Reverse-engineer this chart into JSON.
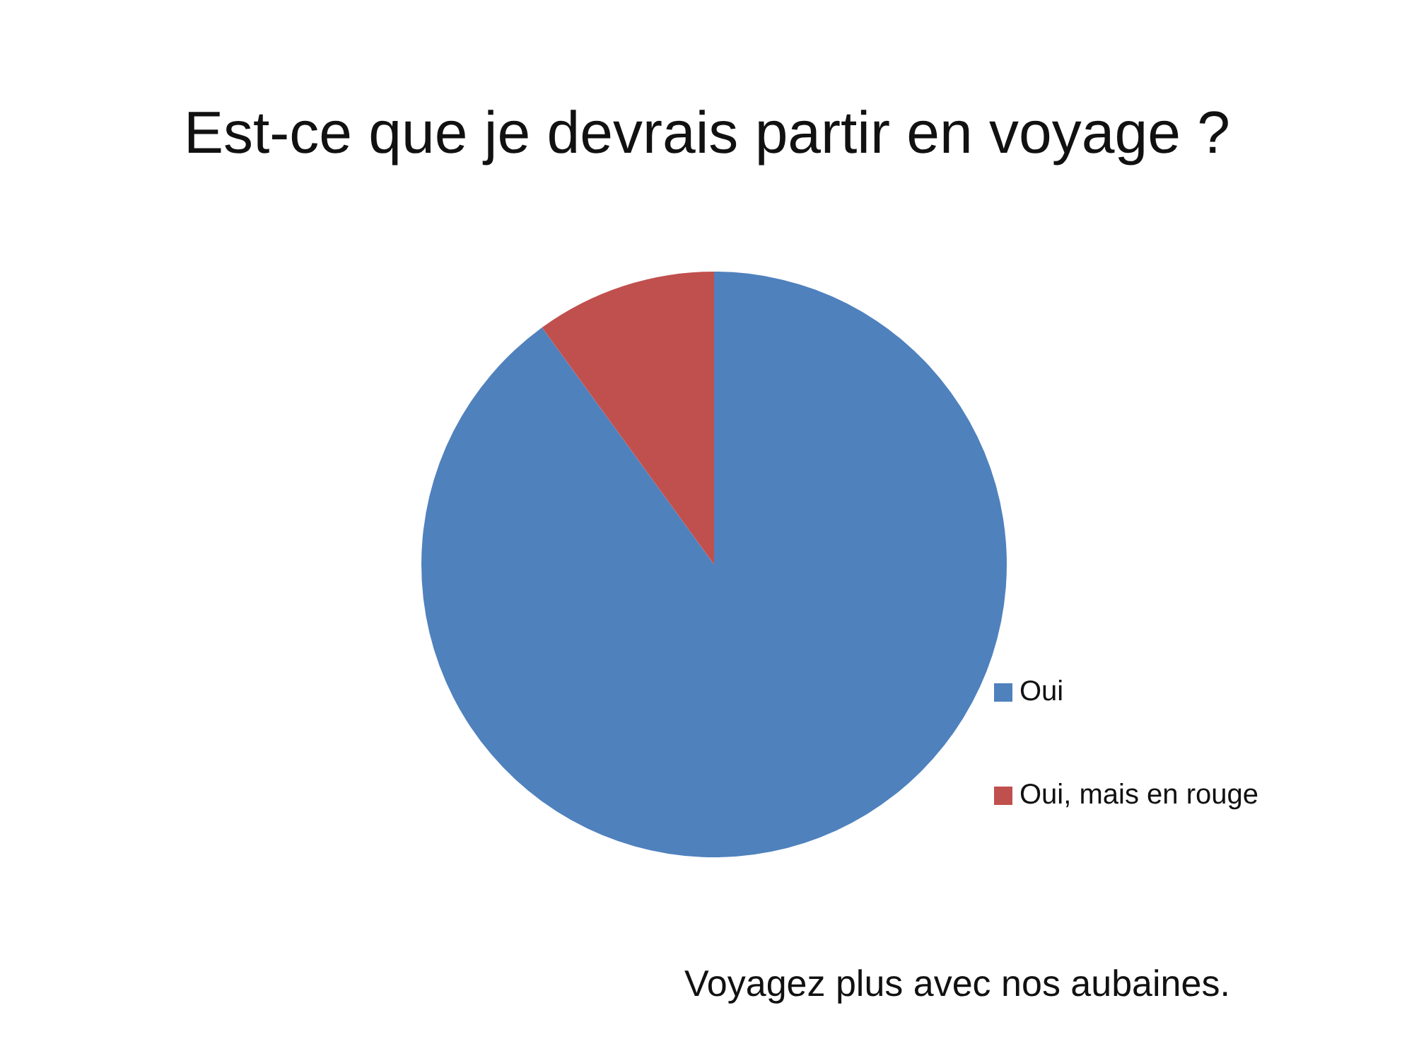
{
  "chart_data": {
    "type": "pie",
    "title": "Est-ce que je devrais partir en voyage ?",
    "categories": [
      "Oui",
      "Oui, mais en rouge"
    ],
    "values": [
      90,
      10
    ],
    "colors": [
      "#4f81bd",
      "#c0504d"
    ],
    "legend": "right",
    "annotations": [
      "Voyagez plus avec nos aubaines."
    ]
  }
}
